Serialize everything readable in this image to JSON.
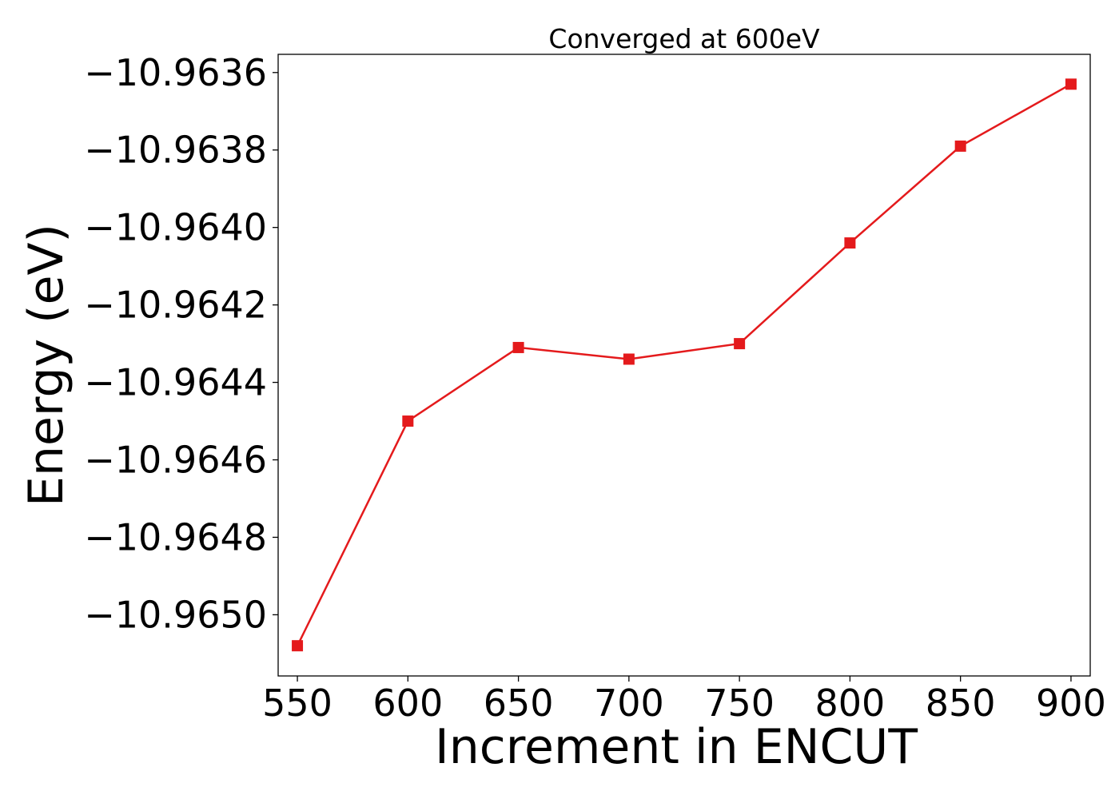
{
  "chart_data": {
    "type": "line",
    "title": "Converged at 600eV",
    "xlabel": "Increment in ENCUT",
    "ylabel": "Energy (eV)",
    "x": [
      550,
      600,
      650,
      700,
      750,
      800,
      850,
      900
    ],
    "series": [
      {
        "values": [
          -10.96508,
          -10.9645,
          -10.96431,
          -10.96434,
          -10.9643,
          -10.96404,
          -10.96379,
          -10.96363
        ],
        "color": "#e41a1c",
        "marker": "square"
      }
    ],
    "xticks": [
      550,
      600,
      650,
      700,
      750,
      800,
      850,
      900
    ],
    "xtick_labels": [
      "550",
      "600",
      "650",
      "700",
      "750",
      "800",
      "850",
      "900"
    ],
    "yticks": [
      -10.9636,
      -10.9638,
      -10.964,
      -10.9642,
      -10.9644,
      -10.9646,
      -10.9648,
      -10.965
    ],
    "ytick_labels": [
      "−10.9636",
      "−10.9638",
      "−10.9640",
      "−10.9642",
      "−10.9644",
      "−10.9646",
      "−10.9648",
      "−10.9650"
    ],
    "xlim": [
      541.3,
      908.7
    ],
    "ylim": [
      -10.965158,
      -10.963553
    ],
    "grid": false,
    "legend": "none"
  }
}
